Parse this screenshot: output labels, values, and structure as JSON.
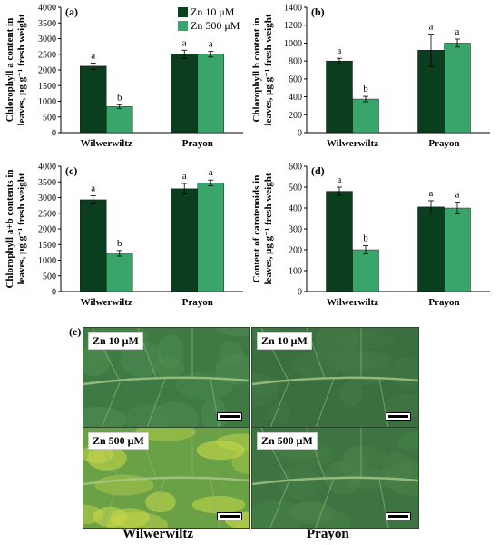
{
  "legend": {
    "items": [
      {
        "label": "Zn 10 μM",
        "color": "#0b3d1f"
      },
      {
        "label": "Zn 500 μM",
        "color": "#3aa56b"
      }
    ]
  },
  "chart_data": [
    {
      "panel": "(a)",
      "type": "bar",
      "ylabel_line1": "Chlorophyll a content in",
      "ylabel_line2": "leaves, μg g⁻¹ fresh weight",
      "categories": [
        "Wilwerwiltz",
        "Prayon"
      ],
      "ylim": [
        0,
        4000
      ],
      "yticks": [
        0,
        500,
        1000,
        1500,
        2000,
        2500,
        3000,
        3500,
        4000
      ],
      "series": [
        {
          "name": "Zn 10 μM",
          "values": [
            2120,
            2500
          ],
          "errors": [
            100,
            130
          ],
          "letters": [
            "a",
            "a"
          ]
        },
        {
          "name": "Zn 500 μM",
          "values": [
            830,
            2500
          ],
          "errors": [
            60,
            90
          ],
          "letters": [
            "b",
            "a"
          ]
        }
      ]
    },
    {
      "panel": "(b)",
      "type": "bar",
      "ylabel_line1": "Chlorophyll b content in",
      "ylabel_line2": "leaves, μg g⁻¹ fresh weight",
      "categories": [
        "Wilwerwiltz",
        "Prayon"
      ],
      "ylim": [
        0,
        1400
      ],
      "yticks": [
        0,
        200,
        400,
        600,
        800,
        1000,
        1200,
        1400
      ],
      "series": [
        {
          "name": "Zn 10 μM",
          "values": [
            800,
            920
          ],
          "errors": [
            30,
            180
          ],
          "letters": [
            "a",
            "a"
          ]
        },
        {
          "name": "Zn 500 μM",
          "values": [
            375,
            1000
          ],
          "errors": [
            30,
            45
          ],
          "letters": [
            "b",
            "a"
          ]
        }
      ]
    },
    {
      "panel": "(c)",
      "type": "bar",
      "ylabel_line1": "Chlorophyll a+b contents in",
      "ylabel_line2": "leaves, μg g⁻¹ fresh weight",
      "categories": [
        "Wilwerwiltz",
        "Prayon"
      ],
      "ylim": [
        0,
        4000
      ],
      "yticks": [
        0,
        500,
        1000,
        1500,
        2000,
        2500,
        3000,
        3500,
        4000
      ],
      "series": [
        {
          "name": "Zn 10 μM",
          "values": [
            2930,
            3280
          ],
          "errors": [
            130,
            170
          ],
          "letters": [
            "a",
            "a"
          ]
        },
        {
          "name": "Zn 500 μM",
          "values": [
            1220,
            3470
          ],
          "errors": [
            90,
            90
          ],
          "letters": [
            "b",
            "a"
          ]
        }
      ]
    },
    {
      "panel": "(d)",
      "type": "bar",
      "ylabel_line1": "Content of carotenoids in",
      "ylabel_line2": "leaves, μg g⁻¹ fresh weight",
      "categories": [
        "Wilwerwiltz",
        "Prayon"
      ],
      "ylim": [
        0,
        600
      ],
      "yticks": [
        0,
        100,
        200,
        300,
        400,
        500,
        600
      ],
      "series": [
        {
          "name": "Zn 10 μM",
          "values": [
            480,
            405
          ],
          "errors": [
            20,
            30
          ],
          "letters": [
            "a",
            "a"
          ]
        },
        {
          "name": "Zn 500 μM",
          "values": [
            200,
            400
          ],
          "errors": [
            20,
            28
          ],
          "letters": [
            "b",
            "a"
          ]
        }
      ]
    }
  ],
  "photos": {
    "panel": "(e)",
    "tiles": [
      {
        "label": "Zn 10 μM",
        "base": "#3f7a45",
        "spot": "#4f8c50"
      },
      {
        "label": "Zn 10 μM",
        "base": "#3a6f3f",
        "spot": "#447a48"
      },
      {
        "label": "Zn 500 μM",
        "base": "#6aa046",
        "spot": "#c8d94a"
      },
      {
        "label": "Zn 500 μM",
        "base": "#3d7441",
        "spot": "#4a8248"
      }
    ],
    "captions": [
      "Wilwerwiltz",
      "Prayon"
    ]
  }
}
